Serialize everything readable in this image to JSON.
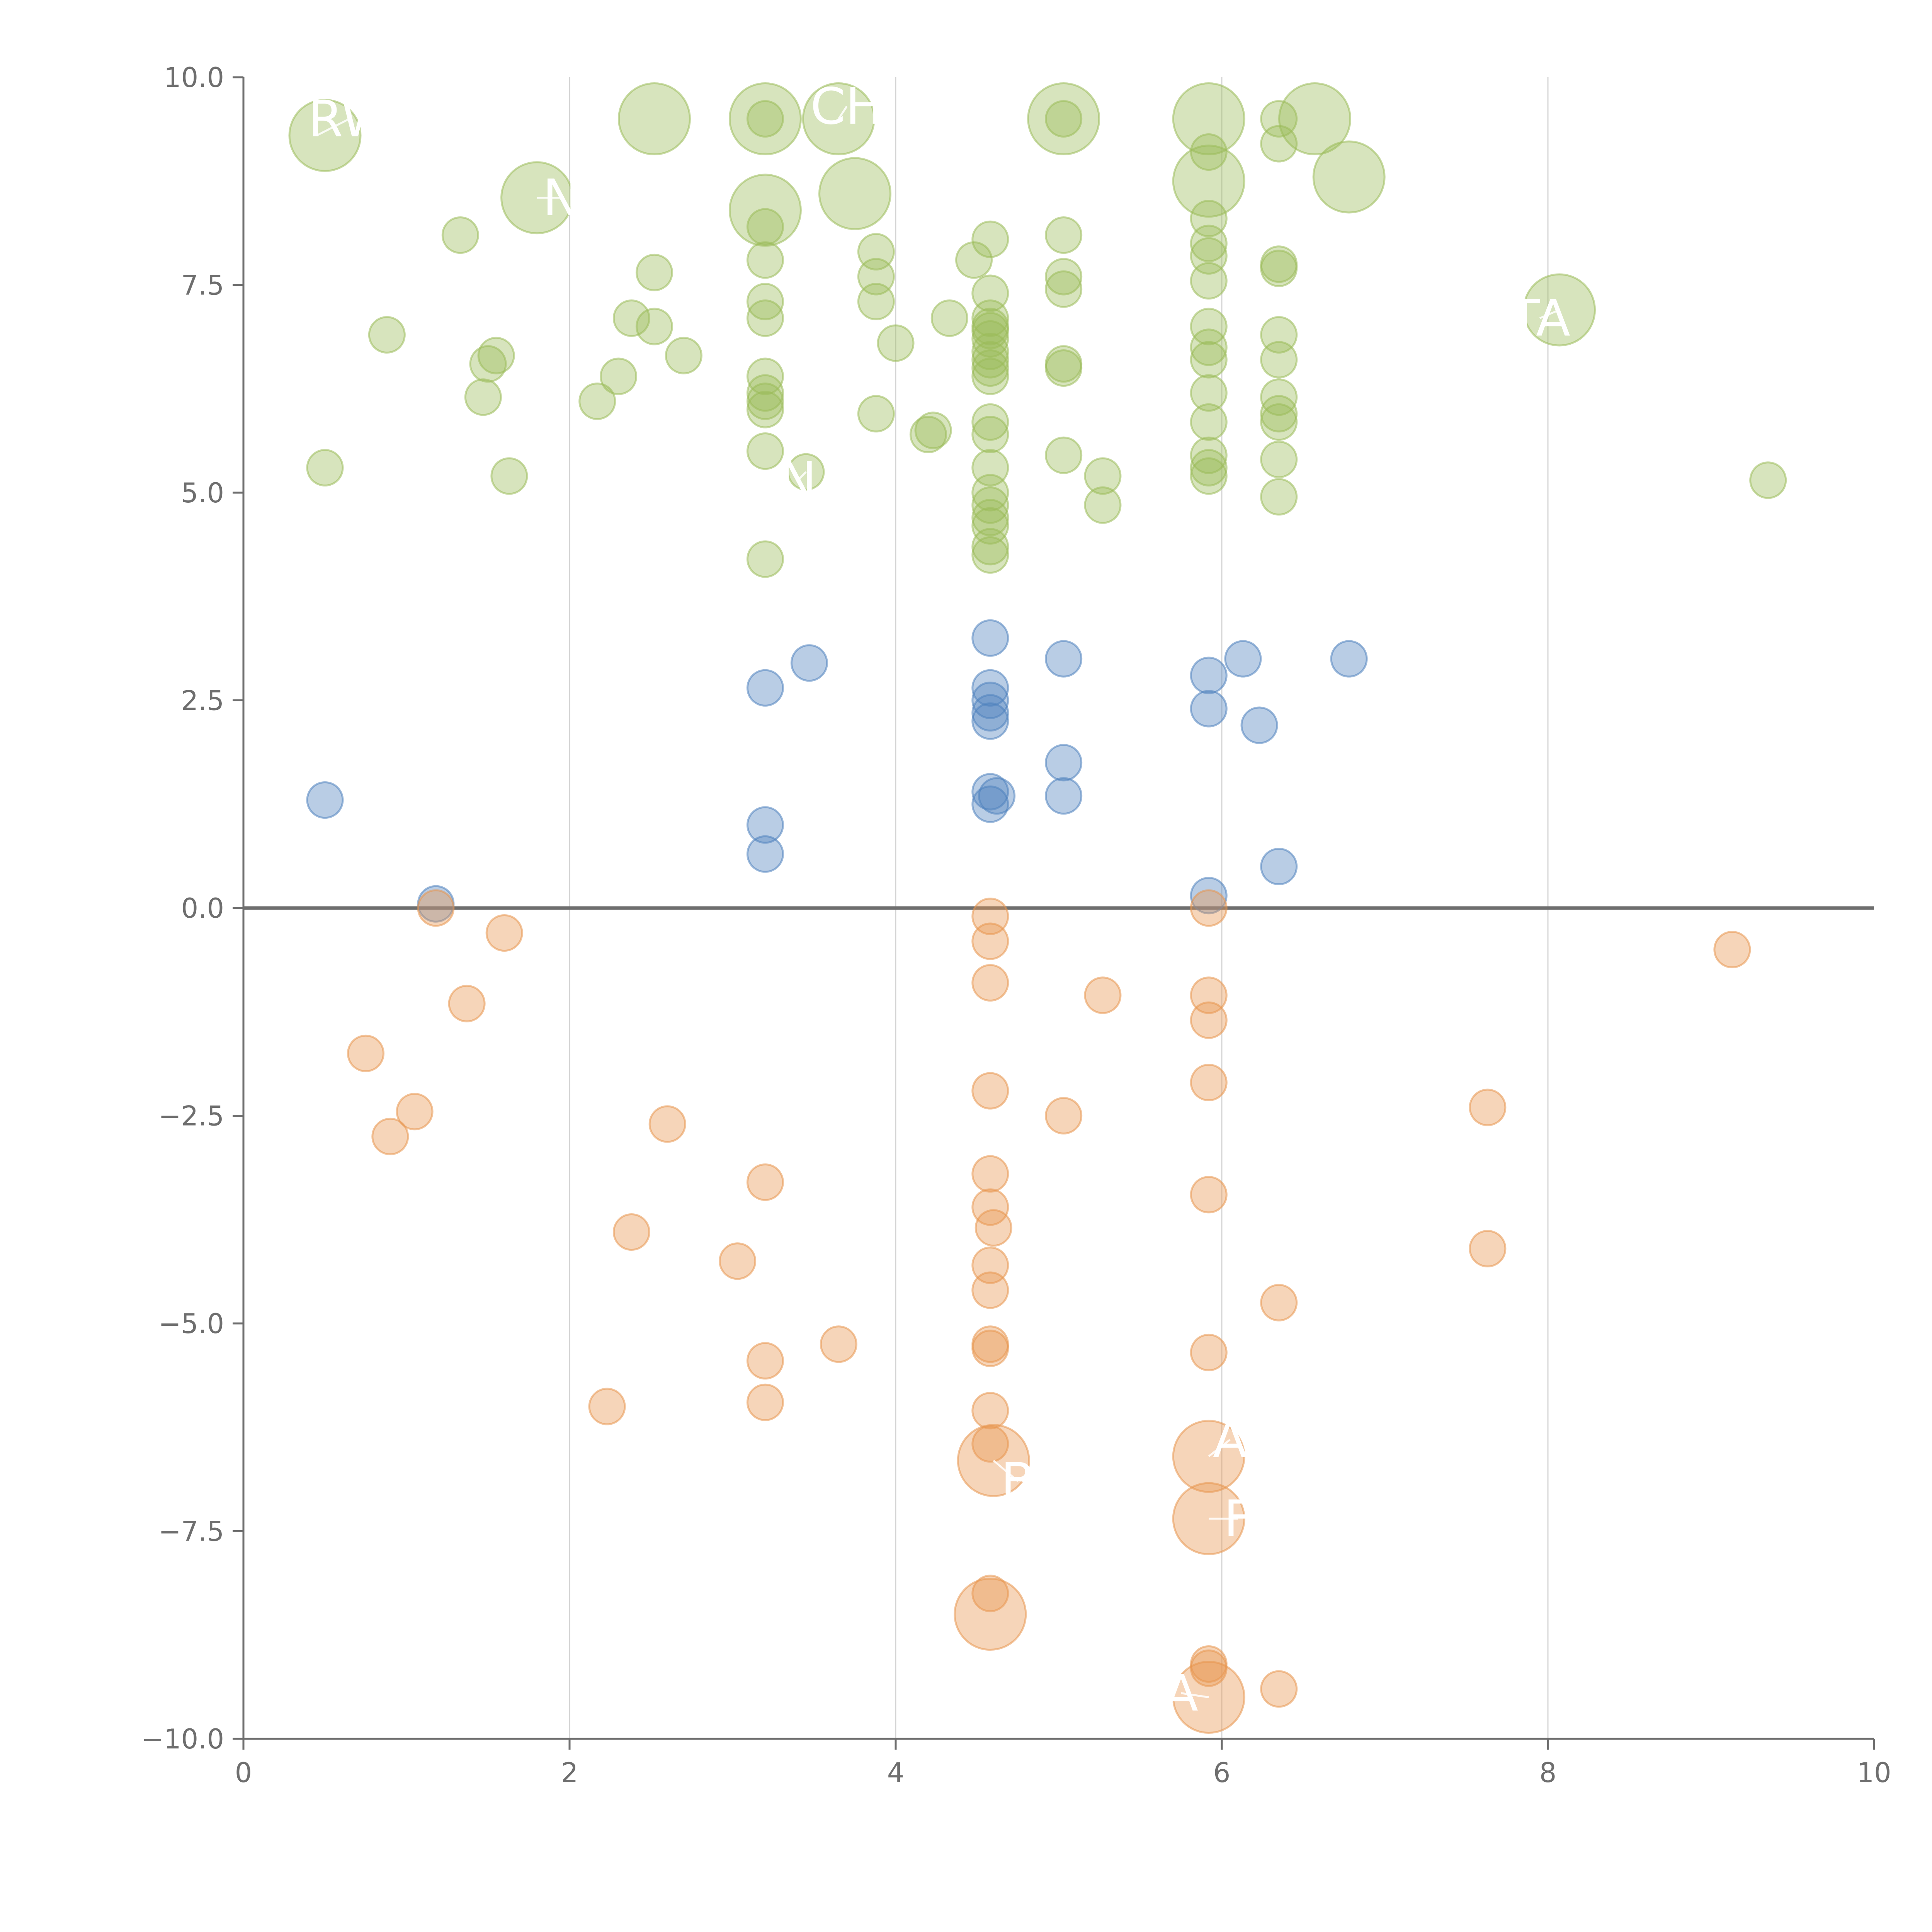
{
  "chart_data": {
    "type": "scatter",
    "xlim": [
      0,
      10
    ],
    "ylim": [
      -10,
      10
    ],
    "x_ticks": [
      "0",
      "2",
      "4",
      "6",
      "8",
      "10"
    ],
    "y_ticks": [
      "−10.0",
      "−7.5",
      "−5.0",
      "−2.5",
      "0.0",
      "2.5",
      "5.0",
      "7.5",
      "10.0"
    ],
    "x_tick_values": [
      0,
      2,
      4,
      6,
      8,
      10
    ],
    "y_tick_values": [
      -10,
      -7.5,
      -5,
      -2.5,
      0,
      2.5,
      5,
      7.5,
      10
    ],
    "grid": "vertical",
    "zero_line": true,
    "colors": {
      "high": "#9bbb59",
      "mid": "#4f81bd",
      "low": "#e8964f",
      "axis": "#6e6e6e",
      "grid": "#d4d4d4"
    },
    "groups": [
      {
        "color_key": "high",
        "points": [
          [
            0.5,
            9.3,
            "L"
          ],
          [
            0.5,
            5.3
          ],
          [
            0.88,
            6.9
          ],
          [
            1.33,
            8.1
          ],
          [
            1.47,
            6.15
          ],
          [
            1.5,
            6.55
          ],
          [
            1.55,
            6.65
          ],
          [
            1.63,
            5.2
          ],
          [
            1.8,
            8.55,
            "L"
          ],
          [
            2.17,
            6.1
          ],
          [
            2.3,
            6.4
          ],
          [
            2.38,
            7.1
          ],
          [
            2.52,
            7.65
          ],
          [
            2.52,
            7.0
          ],
          [
            2.52,
            9.5,
            "L"
          ],
          [
            2.7,
            6.65
          ],
          [
            3.2,
            9.5,
            "L"
          ],
          [
            3.2,
            9.5
          ],
          [
            3.2,
            8.4,
            "L"
          ],
          [
            3.2,
            8.2
          ],
          [
            3.2,
            7.8
          ],
          [
            3.2,
            7.3
          ],
          [
            3.2,
            7.1
          ],
          [
            3.2,
            6.4
          ],
          [
            3.2,
            6.2
          ],
          [
            3.2,
            6.1
          ],
          [
            3.2,
            6.0
          ],
          [
            3.2,
            5.5
          ],
          [
            3.2,
            4.2
          ],
          [
            3.45,
            5.25
          ],
          [
            3.65,
            9.5,
            "L"
          ],
          [
            3.75,
            8.6,
            "L"
          ],
          [
            3.88,
            7.9
          ],
          [
            3.88,
            7.6
          ],
          [
            3.88,
            7.3
          ],
          [
            3.88,
            5.95
          ],
          [
            4.0,
            6.8
          ],
          [
            4.2,
            5.7
          ],
          [
            4.23,
            5.75
          ],
          [
            4.33,
            7.1
          ],
          [
            4.48,
            7.8
          ],
          [
            4.58,
            8.05
          ],
          [
            4.58,
            7.4
          ],
          [
            4.58,
            7.1
          ],
          [
            4.58,
            7.0
          ],
          [
            4.58,
            6.95
          ],
          [
            4.58,
            6.85
          ],
          [
            4.58,
            6.7
          ],
          [
            4.58,
            6.6
          ],
          [
            4.58,
            6.5
          ],
          [
            4.58,
            6.4
          ],
          [
            4.58,
            5.85
          ],
          [
            4.58,
            5.7
          ],
          [
            4.58,
            5.3
          ],
          [
            4.58,
            5.0
          ],
          [
            4.58,
            4.85
          ],
          [
            4.58,
            4.7
          ],
          [
            4.58,
            4.6
          ],
          [
            4.58,
            4.35
          ],
          [
            4.58,
            4.25
          ],
          [
            5.03,
            9.5,
            "L"
          ],
          [
            5.03,
            9.5
          ],
          [
            5.03,
            8.1
          ],
          [
            5.03,
            7.6
          ],
          [
            5.03,
            7.45
          ],
          [
            5.03,
            6.55
          ],
          [
            5.03,
            6.5
          ],
          [
            5.03,
            5.45
          ],
          [
            5.27,
            5.2
          ],
          [
            5.27,
            4.85
          ],
          [
            5.92,
            9.5,
            "L"
          ],
          [
            5.92,
            9.1
          ],
          [
            5.92,
            8.75,
            "L"
          ],
          [
            5.92,
            8.3
          ],
          [
            5.92,
            8.0
          ],
          [
            5.92,
            7.85
          ],
          [
            5.92,
            7.55
          ],
          [
            5.92,
            7.0
          ],
          [
            5.92,
            6.75
          ],
          [
            5.92,
            6.6
          ],
          [
            5.92,
            6.2
          ],
          [
            5.92,
            5.85
          ],
          [
            5.92,
            5.45
          ],
          [
            5.92,
            5.3
          ],
          [
            5.92,
            5.2
          ],
          [
            6.35,
            9.5
          ],
          [
            6.35,
            9.2
          ],
          [
            6.35,
            7.75
          ],
          [
            6.35,
            7.7
          ],
          [
            6.35,
            6.9
          ],
          [
            6.35,
            6.6
          ],
          [
            6.35,
            6.15
          ],
          [
            6.35,
            5.95
          ],
          [
            6.35,
            5.85
          ],
          [
            6.35,
            5.4
          ],
          [
            6.35,
            4.95
          ],
          [
            6.57,
            9.5,
            "L"
          ],
          [
            6.78,
            8.8,
            "L"
          ],
          [
            8.07,
            7.2,
            "L"
          ],
          [
            9.35,
            5.15
          ]
        ]
      },
      {
        "color_key": "mid",
        "points": [
          [
            0.5,
            1.3
          ],
          [
            1.18,
            0.05
          ],
          [
            3.2,
            2.65
          ],
          [
            3.2,
            1.0
          ],
          [
            3.2,
            0.65
          ],
          [
            3.47,
            2.95
          ],
          [
            4.58,
            3.25
          ],
          [
            4.58,
            2.65
          ],
          [
            4.58,
            2.5
          ],
          [
            4.58,
            2.35
          ],
          [
            4.58,
            2.25
          ],
          [
            4.58,
            1.4
          ],
          [
            4.58,
            1.25
          ],
          [
            4.62,
            1.35
          ],
          [
            5.03,
            3.0
          ],
          [
            5.03,
            1.75
          ],
          [
            5.03,
            1.35
          ],
          [
            5.92,
            2.8
          ],
          [
            5.92,
            2.4
          ],
          [
            5.92,
            0.15
          ],
          [
            6.13,
            3.0
          ],
          [
            6.23,
            2.2
          ],
          [
            6.35,
            0.5
          ],
          [
            6.78,
            3.0
          ]
        ]
      },
      {
        "color_key": "low",
        "points": [
          [
            0.75,
            -1.75
          ],
          [
            0.9,
            -2.75
          ],
          [
            1.05,
            -2.45
          ],
          [
            1.18,
            0.0
          ],
          [
            1.37,
            -1.15
          ],
          [
            1.6,
            -0.3
          ],
          [
            2.23,
            -6.0
          ],
          [
            2.38,
            -3.9
          ],
          [
            2.6,
            -2.6
          ],
          [
            3.03,
            -4.25
          ],
          [
            3.2,
            -3.3
          ],
          [
            3.2,
            -5.45
          ],
          [
            3.2,
            -5.95
          ],
          [
            3.65,
            -5.25
          ],
          [
            4.58,
            -0.1
          ],
          [
            4.58,
            -0.4
          ],
          [
            4.58,
            -0.9
          ],
          [
            4.58,
            -2.2
          ],
          [
            4.58,
            -3.2
          ],
          [
            4.58,
            -3.6
          ],
          [
            4.6,
            -3.85
          ],
          [
            4.58,
            -4.3
          ],
          [
            4.58,
            -4.6
          ],
          [
            4.58,
            -5.25
          ],
          [
            4.58,
            -5.3
          ],
          [
            4.58,
            -6.05
          ],
          [
            4.58,
            -6.45
          ],
          [
            4.6,
            -6.65,
            "L"
          ],
          [
            4.58,
            -8.25
          ],
          [
            4.58,
            -8.5,
            "L"
          ],
          [
            5.03,
            -2.5
          ],
          [
            5.27,
            -1.05
          ],
          [
            5.92,
            0.0
          ],
          [
            5.92,
            -1.05
          ],
          [
            5.92,
            -1.35
          ],
          [
            5.92,
            -2.1
          ],
          [
            5.92,
            -3.45
          ],
          [
            5.92,
            -5.35
          ],
          [
            5.92,
            -6.6,
            "L"
          ],
          [
            5.92,
            -7.35,
            "L"
          ],
          [
            5.92,
            -9.1
          ],
          [
            5.92,
            -9.15
          ],
          [
            5.92,
            -9.5,
            "L"
          ],
          [
            6.35,
            -4.75
          ],
          [
            6.35,
            -9.4
          ],
          [
            7.63,
            -2.4
          ],
          [
            7.63,
            -4.1
          ],
          [
            9.13,
            -0.5
          ]
        ]
      }
    ],
    "annotations": [
      {
        "text": "RW",
        "x": 0.65,
        "y": 9.5,
        "px": 0.45,
        "py": 9.3
      },
      {
        "text": "N",
        "x": 1.95,
        "y": 8.55,
        "px": 1.8,
        "py": 8.55
      },
      {
        "text": "CH",
        "x": 3.7,
        "y": 9.65,
        "px": 3.65,
        "py": 9.5
      },
      {
        "text": "N",
        "x": 3.4,
        "y": 5.15,
        "px": 3.45,
        "py": 5.25
      },
      {
        "text": "TA",
        "x": 7.95,
        "y": 7.1,
        "px": 8.07,
        "py": 7.2
      },
      {
        "text": "A",
        "x": 6.05,
        "y": -6.4,
        "px": 5.92,
        "py": -6.6
      },
      {
        "text": "B",
        "x": 4.75,
        "y": -6.9,
        "px": 4.6,
        "py": -6.65
      },
      {
        "text": "F",
        "x": 6.1,
        "y": -7.35,
        "px": 5.92,
        "py": -7.35
      },
      {
        "text": "A",
        "x": 5.75,
        "y": -9.45,
        "px": 5.92,
        "py": -9.5
      }
    ]
  }
}
